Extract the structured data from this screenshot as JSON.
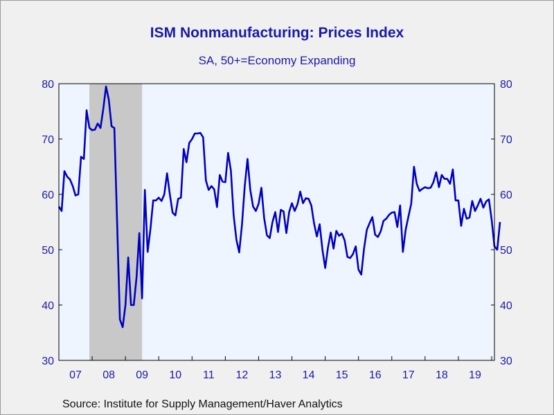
{
  "chart_data": {
    "type": "line",
    "title": "ISM Nonmanufacturing: Prices Index",
    "subtitle": "SA, 50+=Economy Expanding",
    "source": "Source:  Institute for Supply Management/Haver Analytics",
    "x_start": "2007-01",
    "x_end": "2020-02",
    "ylim": [
      30,
      80
    ],
    "yticks": [
      "30",
      "40",
      "50",
      "60",
      "70",
      "80"
    ],
    "xticks": [
      {
        "label": "07",
        "year": 2007
      },
      {
        "label": "08",
        "year": 2008
      },
      {
        "label": "09",
        "year": 2009
      },
      {
        "label": "10",
        "year": 2010
      },
      {
        "label": "11",
        "year": 2011
      },
      {
        "label": "12",
        "year": 2012
      },
      {
        "label": "13",
        "year": 2013
      },
      {
        "label": "14",
        "year": 2014
      },
      {
        "label": "15",
        "year": 2015
      },
      {
        "label": "16",
        "year": 2016
      },
      {
        "label": "17",
        "year": 2017
      },
      {
        "label": "18",
        "year": 2018
      },
      {
        "label": "19",
        "year": 2019
      }
    ],
    "recession": {
      "start": "2007-12",
      "end": "2009-06"
    },
    "grid": false,
    "line_color": "#0000c0",
    "recession_color": "#c8c8c8",
    "plot_background": "#eef5ff",
    "values": [
      57.8,
      57.0,
      64.2,
      63.2,
      62.7,
      61.5,
      59.8,
      60.0,
      66.8,
      66.4,
      75.2,
      72.0,
      71.6,
      71.7,
      72.8,
      72.0,
      75.4,
      79.5,
      77.1,
      72.3,
      72.0,
      54.9,
      37.4,
      36.0,
      40.0,
      48.6,
      40.0,
      40.0,
      45.0,
      53.0,
      41.2,
      60.8,
      49.6,
      53.7,
      58.9,
      58.9,
      59.4,
      58.8,
      60.0,
      63.8,
      60.0,
      56.7,
      56.2,
      59.2,
      59.4,
      68.2,
      65.8,
      69.3,
      70.0,
      71.0,
      71.0,
      71.1,
      70.3,
      62.5,
      60.8,
      61.5,
      60.9,
      57.7,
      63.5,
      62.3,
      62.2,
      67.5,
      64.3,
      56.2,
      51.8,
      49.5,
      54.5,
      61.5,
      66.4,
      60.8,
      57.8,
      57.0,
      58.3,
      61.2,
      55.7,
      52.6,
      52.1,
      55.0,
      56.8,
      53.2,
      57.2,
      56.9,
      53.0,
      56.8,
      58.4,
      57.0,
      58.2,
      60.5,
      58.4,
      59.3,
      59.2,
      58.0,
      54.7,
      52.4,
      54.6,
      50.0,
      46.7,
      50.4,
      53.1,
      50.2,
      53.4,
      52.5,
      52.9,
      51.7,
      48.7,
      48.5,
      49.2,
      50.6,
      46.4,
      45.5,
      50.2,
      53.6,
      54.8,
      55.9,
      52.7,
      52.3,
      53.3,
      55.2,
      55.6,
      56.3,
      56.7,
      56.8,
      54.1,
      58.0,
      49.6,
      53.6,
      56.0,
      58.3,
      65.0,
      61.9,
      60.6,
      61.0,
      61.3,
      61.1,
      61.2,
      62.2,
      64.0,
      61.3,
      63.5,
      62.8,
      62.8,
      61.9,
      64.5,
      58.9,
      58.9,
      54.3,
      57.4,
      55.6,
      55.8,
      58.8,
      57.0,
      58.0,
      59.2,
      57.6,
      58.7,
      59.1,
      55.4,
      50.6,
      50.0,
      55.0
    ]
  }
}
